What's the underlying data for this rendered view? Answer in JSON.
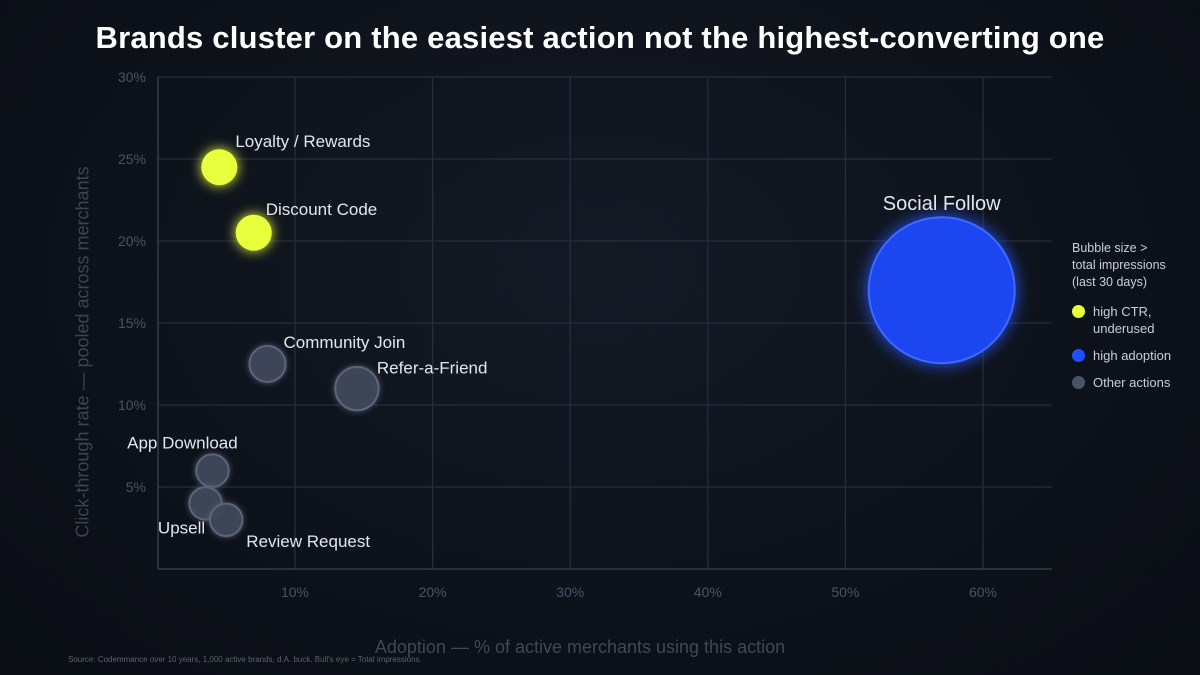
{
  "chart_data": {
    "type": "scatter",
    "title": "Brands cluster on the easiest action not the highest-converting one",
    "xlabel": "Adoption — % of active merchants using this action",
    "ylabel": "Click-through rate — pooled across merchants",
    "xlim": [
      0,
      65
    ],
    "ylim": [
      0,
      30
    ],
    "x_ticks": [
      10,
      20,
      30,
      40,
      50,
      60
    ],
    "x_tick_labels": [
      "10%",
      "20%",
      "30%",
      "40%",
      "50%",
      "60%"
    ],
    "y_ticks": [
      5,
      10,
      15,
      20,
      25,
      30
    ],
    "y_tick_labels": [
      "5%",
      "10%",
      "15%",
      "20%",
      "25%",
      "30%"
    ],
    "grid": true,
    "legend_position": "right",
    "source": "Source: Codemmance over 10 years, 1,000 active brands, d.A. buck. Bull's eye = Total impressions.",
    "legend": {
      "title": "Bubble size >\ntotal impressions\n(last 30 days)",
      "items": [
        {
          "label": "high CTR,\nunderused",
          "color": "#e6ff3a",
          "group": "high_ctr"
        },
        {
          "label": "high adoption",
          "color": "#1f4fff",
          "group": "high_adoption"
        },
        {
          "label": "Other actions",
          "color": "#4a5366",
          "group": "other"
        }
      ]
    },
    "points": [
      {
        "label": "Loyalty / Rewards",
        "x": 4.5,
        "y": 24.5,
        "size": 1,
        "group": "high_ctr"
      },
      {
        "label": "Discount Code",
        "x": 7,
        "y": 20.5,
        "size": 1,
        "group": "high_ctr"
      },
      {
        "label": "Social Follow",
        "x": 57,
        "y": 17,
        "size": 4,
        "group": "high_adoption"
      },
      {
        "label": "Community Join",
        "x": 8,
        "y": 12.5,
        "size": 1,
        "group": "other"
      },
      {
        "label": "Refer-a-Friend",
        "x": 14.5,
        "y": 11,
        "size": 1.2,
        "group": "other"
      },
      {
        "label": "App Download",
        "x": 4,
        "y": 6,
        "size": 0.9,
        "group": "other"
      },
      {
        "label": "Upsell",
        "x": 3.5,
        "y": 4,
        "size": 0.9,
        "group": "other"
      },
      {
        "label": "Review Request",
        "x": 5,
        "y": 3,
        "size": 0.9,
        "group": "other"
      }
    ]
  }
}
